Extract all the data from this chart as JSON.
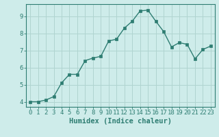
{
  "x": [
    0,
    1,
    2,
    3,
    4,
    5,
    6,
    7,
    8,
    9,
    10,
    11,
    12,
    13,
    14,
    15,
    16,
    17,
    18,
    19,
    20,
    21,
    22,
    23
  ],
  "y": [
    4.0,
    4.0,
    4.1,
    4.3,
    5.1,
    5.6,
    5.6,
    6.4,
    6.55,
    6.65,
    7.55,
    7.65,
    8.3,
    8.7,
    9.3,
    9.35,
    8.7,
    8.1,
    7.2,
    7.45,
    7.35,
    6.5,
    7.05,
    7.25
  ],
  "line_color": "#2e7d72",
  "marker": "s",
  "marker_size": 2.5,
  "bg_color": "#ceecea",
  "grid_color": "#b0d4d0",
  "axis_color": "#2e7d72",
  "xlabel": "Humidex (Indice chaleur)",
  "xlabel_fontsize": 7.5,
  "tick_fontsize": 6.5,
  "ylim": [
    3.7,
    9.7
  ],
  "xlim": [
    -0.5,
    23.5
  ],
  "yticks": [
    4,
    5,
    6,
    7,
    8,
    9
  ],
  "xticks": [
    0,
    1,
    2,
    3,
    4,
    5,
    6,
    7,
    8,
    9,
    10,
    11,
    12,
    13,
    14,
    15,
    16,
    17,
    18,
    19,
    20,
    21,
    22,
    23
  ]
}
